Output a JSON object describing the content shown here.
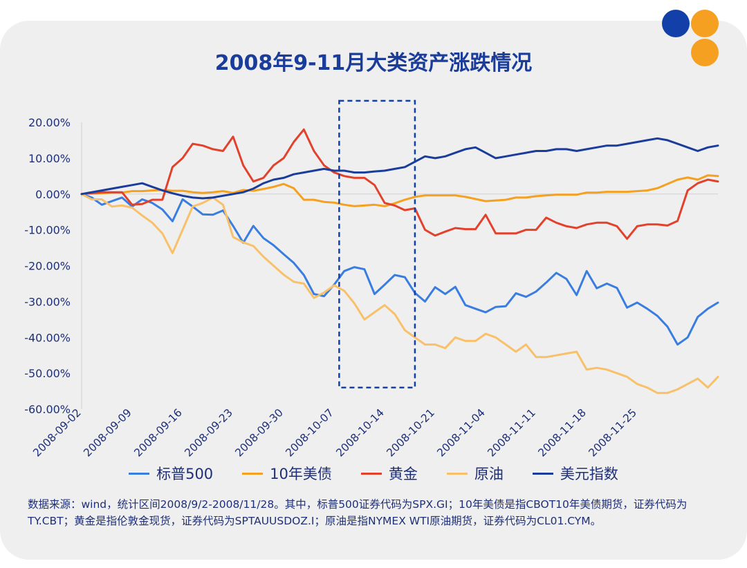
{
  "title": "2008年9-11月大类资产涨跌情况",
  "note": "数据来源：wind，统计区间2008/9/2-2008/11/28。其中，标普500证券代码为SPX.GI；10年美债是指CBOT10年美债期货，证券代码为TY.CBT；黄金是指伦敦金现货，证券代码为SPTAUUSDOZ.I；原油是指NYMEX WTI原油期货，证券代码为CL01.CYM。",
  "colors": {
    "card_bg": "#efefef",
    "title": "#1a3c9a",
    "dot_blue": "#1340a8",
    "dot_orange": "#f5a020",
    "highlight_box": "#1340a8"
  },
  "chart_data": {
    "type": "line",
    "title": "2008年9-11月大类资产涨跌情况",
    "ylim": [
      -60,
      20
    ],
    "y_ticks": [
      20,
      10,
      0,
      -10,
      -20,
      -30,
      -40,
      -50,
      -60
    ],
    "y_tick_labels": [
      "20.00%",
      "10.00%",
      "0.00%",
      "-10.00%",
      "-20.00%",
      "-30.00%",
      "-40.00%",
      "-50.00%",
      "-60.00%"
    ],
    "x_range": [
      0,
      63
    ],
    "x_ticks": [
      0,
      5,
      10,
      15,
      20,
      25,
      30,
      35,
      40,
      45,
      50,
      55
    ],
    "x_tick_labels": [
      "2008-09-02",
      "2008-09-09",
      "2008-09-16",
      "2008-09-23",
      "2008-09-30",
      "2008-10-07",
      "2008-10-14",
      "2008-10-21",
      "2008-11-04",
      "2008-11-11",
      "2008-11-18",
      "2008-11-25"
    ],
    "highlight_range": {
      "x": [
        25.5,
        33
      ],
      "y": [
        -54,
        26
      ]
    },
    "series": [
      {
        "name": "标普500",
        "color": "#3a7de0",
        "values": [
          0,
          -1,
          -3,
          -2,
          -1,
          -3.5,
          -1.5,
          -2.5,
          -4.3,
          -7.6,
          -1.5,
          -3.5,
          -5.7,
          -5.8,
          -4.6,
          -8.9,
          -13.6,
          -8.9,
          -12.3,
          -14.3,
          -16.8,
          -19.2,
          -22.6,
          -27.9,
          -28.5,
          -25.3,
          -21.5,
          -20.4,
          -21.0,
          -27.9,
          -25.3,
          -22.6,
          -23.2,
          -27.6,
          -30.0,
          -26.0,
          -27.9,
          -25.9,
          -31.0,
          -32.0,
          -33.0,
          -31.5,
          -31.3,
          -27.7,
          -28.7,
          -27.2,
          -24.7,
          -22.0,
          -23.7,
          -28.2,
          -21.5,
          -26.3,
          -25.0,
          -26.2,
          -31.7,
          -30.3,
          -32.0,
          -34.0,
          -37.0,
          -42.0,
          -40.0,
          -34.3,
          -32.0,
          -30.3
        ]
      },
      {
        "name": "10年美债",
        "color": "#f5a020",
        "values": [
          0,
          0.2,
          0.2,
          0.4,
          0.4,
          0.8,
          0.8,
          1.0,
          1.1,
          0.9,
          0.9,
          0.5,
          0.3,
          0.5,
          0.8,
          0.3,
          1.1,
          0.9,
          1.4,
          2.0,
          2.8,
          1.6,
          -1.6,
          -1.6,
          -2.2,
          -2.4,
          -3.0,
          -3.4,
          -3.2,
          -3.0,
          -3.4,
          -2.6,
          -1.6,
          -0.8,
          -0.4,
          -0.4,
          -0.4,
          -0.4,
          -0.8,
          -1.4,
          -2.0,
          -1.8,
          -1.6,
          -1.0,
          -1.0,
          -0.6,
          -0.4,
          -0.2,
          -0.2,
          -0.2,
          0.4,
          0.4,
          0.6,
          0.6,
          0.6,
          0.8,
          1.0,
          1.6,
          2.8,
          4.0,
          4.6,
          4.0,
          5.2,
          5.0
        ]
      },
      {
        "name": "黄金",
        "color": "#e2412c",
        "values": [
          0,
          0.2,
          0.5,
          0.5,
          0.5,
          -3.0,
          -2.8,
          -1.6,
          -1.6,
          7.5,
          10.0,
          14.0,
          13.5,
          12.5,
          12.0,
          16.0,
          8.0,
          3.5,
          4.5,
          8.0,
          10.0,
          14.5,
          18.0,
          12.0,
          8.0,
          6.0,
          5.0,
          4.5,
          4.5,
          2.5,
          -2.5,
          -3.2,
          -4.5,
          -4.0,
          -10.0,
          -11.6,
          -10.5,
          -9.5,
          -9.8,
          -9.8,
          -5.8,
          -11.0,
          -11.0,
          -11.0,
          -10.0,
          -10.0,
          -6.6,
          -8.0,
          -9.0,
          -9.5,
          -8.5,
          -8.0,
          -8.0,
          -9.0,
          -12.5,
          -9.0,
          -8.5,
          -8.5,
          -8.8,
          -7.5,
          1.0,
          3.0,
          4.0,
          3.5
        ]
      },
      {
        "name": "原油",
        "color": "#f8c169",
        "values": [
          0,
          -1.5,
          -1.5,
          -3.5,
          -3.2,
          -3.8,
          -6.0,
          -8.0,
          -11.0,
          -16.5,
          -10.0,
          -3.5,
          -2.5,
          -1.0,
          -3.0,
          -12.0,
          -13.5,
          -14.5,
          -17.5,
          -20.0,
          -22.5,
          -24.5,
          -25.0,
          -29.0,
          -27.5,
          -25.5,
          -27.0,
          -30.5,
          -35.0,
          -33.0,
          -31.0,
          -33.5,
          -38.0,
          -40.0,
          -42.0,
          -42.0,
          -43.0,
          -40.0,
          -41.0,
          -41.0,
          -39.0,
          -40.0,
          -42.0,
          -44.0,
          -42.0,
          -45.5,
          -45.5,
          -45.0,
          -44.5,
          -44.0,
          -49.0,
          -48.5,
          -49.0,
          -50.0,
          -51.0,
          -53.0,
          -54.0,
          -55.5,
          -55.5,
          -54.5,
          -53.0,
          -51.5,
          -54.0,
          -51.0
        ]
      },
      {
        "name": "美元指数",
        "color": "#1a3c9a",
        "values": [
          0,
          0.5,
          1.0,
          1.5,
          2.0,
          2.5,
          3.0,
          2.0,
          1.0,
          0.2,
          -0.5,
          -1.0,
          -1.2,
          -1.0,
          -0.5,
          0.0,
          0.5,
          1.5,
          3.0,
          4.0,
          4.5,
          5.5,
          6.0,
          6.5,
          7.0,
          6.5,
          6.5,
          6.0,
          6.0,
          6.3,
          6.5,
          7.0,
          7.5,
          9.0,
          10.5,
          10.0,
          10.5,
          11.5,
          12.5,
          13.0,
          11.5,
          10.0,
          10.5,
          11.0,
          11.5,
          12.0,
          12.0,
          12.5,
          12.5,
          12.0,
          12.5,
          13.0,
          13.5,
          13.5,
          14.0,
          14.5,
          15.0,
          15.5,
          15.0,
          14.0,
          13.0,
          12.0,
          13.0,
          13.5
        ]
      }
    ]
  }
}
